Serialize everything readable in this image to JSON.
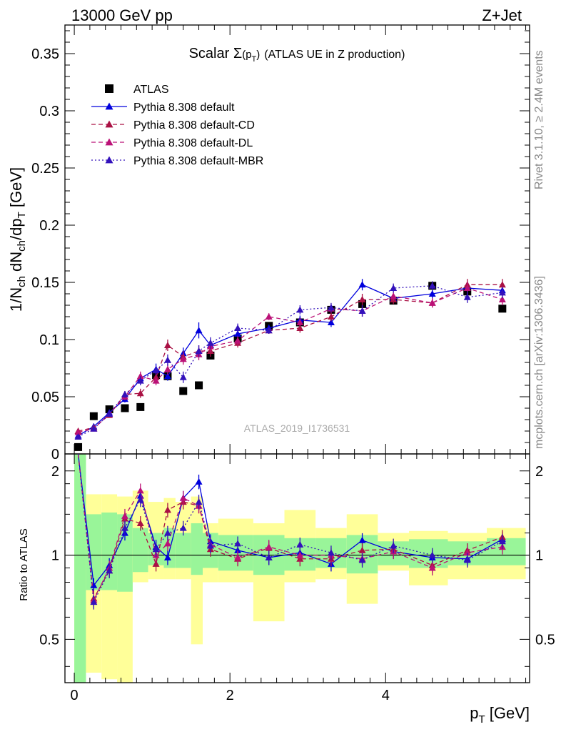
{
  "header": {
    "left": "13000 GeV pp",
    "right": "Z+Jet"
  },
  "side_labels": {
    "rivet": "Rivet 3.1.10, ≥ 2.4M events",
    "mcplots": "mcplots.cern.ch [arXiv:1306.3436]"
  },
  "watermark": "ATLAS_2019_I1736531",
  "chart_data": {
    "type": "scatter",
    "title_main": "Scalar Σ",
    "title_arg": "(p",
    "title_sub": "T",
    "title_close": ")",
    "title_rest": "(ATLAS UE in Z production)",
    "ylabel": "1/N_ch dN_ch/dp_T [GeV]",
    "xlabel": "p_T [GeV]",
    "ratio_ylabel": "Ratio to ATLAS",
    "xlim": [
      -0.12,
      5.85
    ],
    "ylim": [
      0,
      0.375
    ],
    "ratio_ylim": [
      0.35,
      2.3
    ],
    "ratio_scale": "log",
    "x_ticks": [
      0,
      2,
      4
    ],
    "x_tick_labels": [
      "0",
      "2",
      "4"
    ],
    "y_ticks": [
      0,
      0.05,
      0.1,
      0.15,
      0.2,
      0.25,
      0.3,
      0.35
    ],
    "y_tick_labels": [
      "0",
      "0.05",
      "0.1",
      "0.15",
      "0.2",
      "0.25",
      "0.3",
      "0.35"
    ],
    "ratio_ticks": [
      0.5,
      1,
      2
    ],
    "ratio_tick_labels": [
      "0.5",
      "1",
      "2"
    ],
    "legend_position": "top-left",
    "x": [
      0.05,
      0.25,
      0.45,
      0.65,
      0.85,
      1.05,
      1.2,
      1.4,
      1.6,
      1.75,
      2.1,
      2.5,
      2.9,
      3.3,
      3.7,
      4.1,
      4.6,
      5.05,
      5.5
    ],
    "bins": [
      [
        0.0,
        0.15
      ],
      [
        0.15,
        0.35
      ],
      [
        0.35,
        0.55
      ],
      [
        0.55,
        0.75
      ],
      [
        0.75,
        0.95
      ],
      [
        0.95,
        1.15
      ],
      [
        1.15,
        1.3
      ],
      [
        1.3,
        1.5
      ],
      [
        1.5,
        1.65
      ],
      [
        1.65,
        1.85
      ],
      [
        1.85,
        2.3
      ],
      [
        2.3,
        2.7
      ],
      [
        2.7,
        3.1
      ],
      [
        3.1,
        3.5
      ],
      [
        3.5,
        3.9
      ],
      [
        3.9,
        4.3
      ],
      [
        4.3,
        4.8
      ],
      [
        4.8,
        5.3
      ],
      [
        5.3,
        5.8
      ]
    ],
    "band_yellow": [
      [
        0.35,
        2.3
      ],
      [
        0.38,
        1.65
      ],
      [
        0.36,
        1.65
      ],
      [
        0.32,
        1.62
      ],
      [
        0.8,
        1.7
      ],
      [
        0.82,
        1.55
      ],
      [
        0.82,
        1.6
      ],
      [
        0.82,
        1.55
      ],
      [
        0.48,
        1.62
      ],
      [
        0.8,
        1.3
      ],
      [
        0.8,
        1.35
      ],
      [
        0.58,
        1.3
      ],
      [
        0.8,
        1.45
      ],
      [
        0.82,
        1.25
      ],
      [
        0.67,
        1.4
      ],
      [
        0.88,
        1.2
      ],
      [
        0.78,
        1.22
      ],
      [
        0.82,
        1.2
      ],
      [
        0.82,
        1.25
      ]
    ],
    "band_green": [
      [
        0.35,
        2.3
      ],
      [
        0.75,
        1.4
      ],
      [
        0.75,
        1.42
      ],
      [
        0.74,
        1.4
      ],
      [
        0.87,
        1.25
      ],
      [
        0.92,
        1.2
      ],
      [
        0.9,
        1.25
      ],
      [
        0.9,
        1.2
      ],
      [
        0.85,
        1.3
      ],
      [
        0.9,
        1.2
      ],
      [
        0.88,
        1.18
      ],
      [
        0.85,
        1.18
      ],
      [
        0.88,
        1.15
      ],
      [
        0.9,
        1.15
      ],
      [
        0.86,
        1.18
      ],
      [
        0.92,
        1.12
      ],
      [
        0.9,
        1.14
      ],
      [
        0.92,
        1.12
      ],
      [
        0.92,
        1.15
      ]
    ],
    "series": [
      {
        "name": "ATLAS",
        "color": "#000000",
        "style": "data",
        "values": [
          0.006,
          0.033,
          0.039,
          0.04,
          0.041,
          0.069,
          0.068,
          0.055,
          0.06,
          0.086,
          0.101,
          0.112,
          0.115,
          0.126,
          0.131,
          0.134,
          0.147,
          0.142,
          0.127
        ]
      },
      {
        "name": "Pythia 8.308 default",
        "color": "#0000dd",
        "style": "solid",
        "values": [
          0.016,
          0.024,
          0.036,
          0.048,
          0.066,
          0.074,
          0.068,
          0.088,
          0.108,
          0.095,
          0.105,
          0.11,
          0.117,
          0.115,
          0.148,
          0.136,
          0.14,
          0.145,
          0.143
        ],
        "errors": [
          0.002,
          0.002,
          0.002,
          0.003,
          0.004,
          0.005,
          0.004,
          0.005,
          0.007,
          0.005,
          0.004,
          0.003,
          0.004,
          0.004,
          0.005,
          0.004,
          0.004,
          0.005,
          0.005
        ],
        "ratio": [
          2.6,
          0.78,
          0.92,
          1.2,
          1.63,
          1.07,
          0.98,
          1.6,
          1.83,
          1.12,
          1.04,
          0.98,
          1.02,
          0.93,
          1.13,
          1.03,
          0.98,
          0.97,
          1.14
        ]
      },
      {
        "name": "Pythia 8.308 default-CD",
        "color": "#aa1144",
        "style": "dashed",
        "values": [
          0.02,
          0.023,
          0.034,
          0.052,
          0.053,
          0.067,
          0.095,
          0.085,
          0.09,
          0.09,
          0.097,
          0.108,
          0.11,
          0.12,
          0.135,
          0.135,
          0.132,
          0.148,
          0.148
        ],
        "errors": [
          0.002,
          0.002,
          0.002,
          0.003,
          0.004,
          0.004,
          0.005,
          0.005,
          0.005,
          0.005,
          0.004,
          0.003,
          0.004,
          0.004,
          0.005,
          0.004,
          0.004,
          0.005,
          0.005
        ],
        "ratio": [
          2.6,
          0.7,
          0.88,
          1.35,
          1.3,
          0.93,
          1.45,
          1.55,
          1.5,
          1.05,
          0.97,
          1.06,
          0.97,
          0.97,
          1.04,
          1.05,
          0.92,
          1.04,
          1.16
        ]
      },
      {
        "name": "Pythia 8.308 default-DL",
        "color": "#bb1177",
        "style": "dashed",
        "values": [
          0.019,
          0.022,
          0.035,
          0.05,
          0.068,
          0.064,
          0.074,
          0.083,
          0.087,
          0.094,
          0.099,
          0.12,
          0.115,
          0.127,
          0.125,
          0.138,
          0.132,
          0.145,
          0.135
        ],
        "errors": [
          0.002,
          0.002,
          0.002,
          0.003,
          0.004,
          0.004,
          0.005,
          0.005,
          0.005,
          0.005,
          0.004,
          0.003,
          0.004,
          0.004,
          0.005,
          0.004,
          0.004,
          0.005,
          0.005
        ],
        "ratio": [
          2.6,
          0.69,
          0.9,
          1.38,
          1.7,
          1.0,
          1.1,
          1.6,
          1.5,
          1.09,
          0.98,
          1.07,
          1.0,
          1.0,
          0.97,
          1.03,
          0.9,
          1.02,
          1.07
        ]
      },
      {
        "name": "Pythia 8.308 default-MBR",
        "color": "#3311bb",
        "style": "dotted",
        "values": [
          0.015,
          0.022,
          0.035,
          0.052,
          0.064,
          0.073,
          0.082,
          0.067,
          0.09,
          0.097,
          0.11,
          0.108,
          0.126,
          0.128,
          0.125,
          0.145,
          0.147,
          0.137,
          0.141
        ],
        "errors": [
          0.002,
          0.002,
          0.002,
          0.003,
          0.004,
          0.004,
          0.005,
          0.005,
          0.005,
          0.005,
          0.004,
          0.003,
          0.004,
          0.004,
          0.005,
          0.004,
          0.004,
          0.005,
          0.005
        ],
        "ratio": [
          2.5,
          0.68,
          0.88,
          1.25,
          1.58,
          1.05,
          1.2,
          1.25,
          1.55,
          1.08,
          1.1,
          0.98,
          1.09,
          1.02,
          0.96,
          1.08,
          1.0,
          0.96,
          1.12
        ]
      }
    ]
  }
}
